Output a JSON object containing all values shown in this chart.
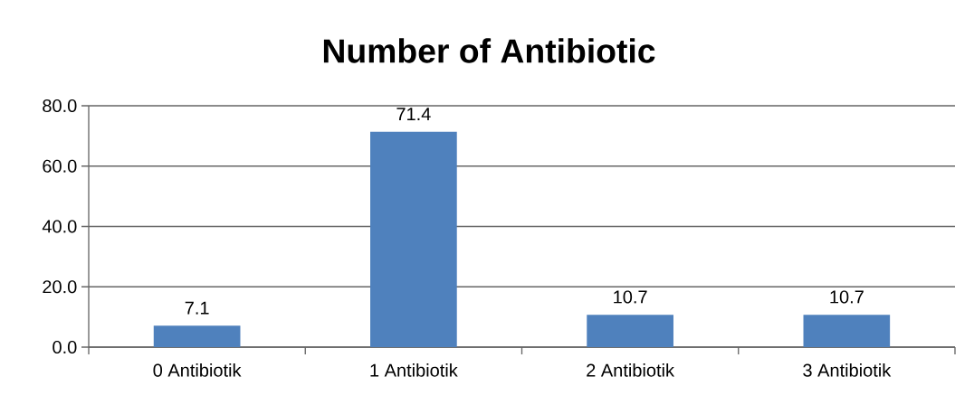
{
  "chart_data": {
    "type": "bar",
    "title": "Number of Antibiotic",
    "categories": [
      "0 Antibiotik",
      "1 Antibiotik",
      "2 Antibiotik",
      "3 Antibiotik"
    ],
    "values": [
      7.1,
      71.4,
      10.7,
      10.7
    ],
    "color": "#4f81bd",
    "ylim": [
      0,
      80
    ],
    "yticks": [
      {
        "value": 0,
        "label": "0.0"
      },
      {
        "value": 20,
        "label": "20.0"
      },
      {
        "value": 40,
        "label": "40.0"
      },
      {
        "value": 60,
        "label": "60.0"
      },
      {
        "value": 80,
        "label": "80.0"
      }
    ],
    "grid": "y",
    "data_labels": true
  }
}
